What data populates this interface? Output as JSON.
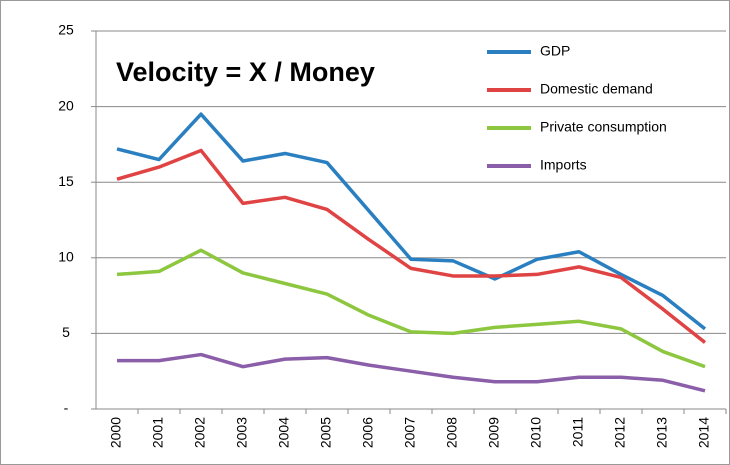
{
  "chart_data": {
    "type": "line",
    "annotation": "Velocity = X / Money",
    "categories": [
      "2000",
      "2001",
      "2002",
      "2003",
      "2004",
      "2005",
      "2006",
      "2007",
      "2008",
      "2009",
      "2010",
      "2011",
      "2012",
      "2013",
      "2014"
    ],
    "series": [
      {
        "name": "GDP",
        "color": "#2a7fc1",
        "values": [
          17.2,
          16.5,
          19.5,
          16.4,
          16.9,
          16.3,
          13.1,
          9.9,
          9.8,
          8.6,
          9.9,
          10.4,
          8.9,
          7.5,
          5.3
        ]
      },
      {
        "name": "Domestic demand",
        "color": "#e04343",
        "values": [
          15.2,
          16.0,
          17.1,
          13.6,
          14.0,
          13.2,
          11.2,
          9.3,
          8.8,
          8.8,
          8.9,
          9.4,
          8.7,
          6.6,
          4.4
        ]
      },
      {
        "name": "Private consumption",
        "color": "#8dc63f",
        "values": [
          8.9,
          9.1,
          10.5,
          9.0,
          8.3,
          7.6,
          6.2,
          5.1,
          5.0,
          5.4,
          5.6,
          5.8,
          5.3,
          3.8,
          2.8
        ]
      },
      {
        "name": "Imports",
        "color": "#8a5ea8",
        "values": [
          3.2,
          3.2,
          3.6,
          2.8,
          3.3,
          3.4,
          2.9,
          2.5,
          2.1,
          1.8,
          1.8,
          2.1,
          2.1,
          1.9,
          1.2
        ]
      }
    ],
    "ylim": [
      0,
      25
    ],
    "yticks": [
      {
        "value": 0,
        "label": "-"
      },
      5,
      10,
      15,
      20,
      25
    ],
    "grid": true,
    "legend": "top-right"
  }
}
